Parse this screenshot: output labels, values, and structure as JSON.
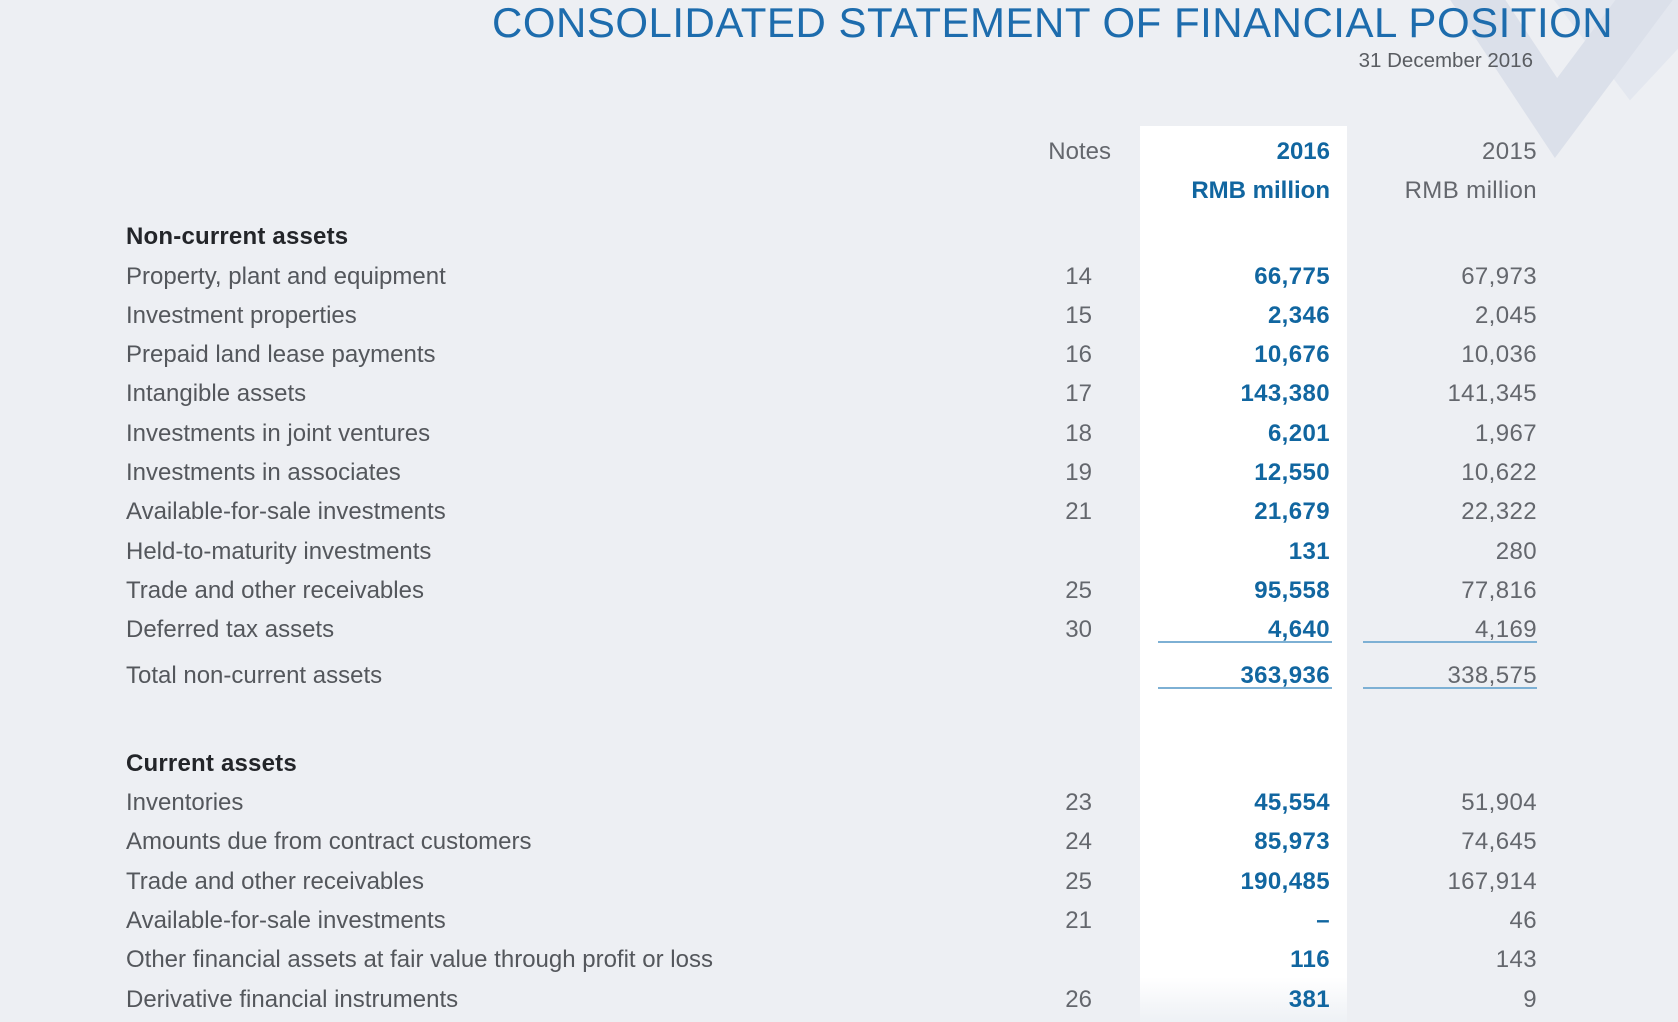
{
  "report": {
    "title": "CONSOLIDATED STATEMENT OF FINANCIAL POSITION",
    "date": "31 December 2016"
  },
  "table": {
    "headers": {
      "notes": "Notes",
      "year_current": "2016",
      "year_prior": "2015",
      "unit_current": "RMB million",
      "unit_prior": "RMB million"
    },
    "sections": [
      {
        "heading": "Non-current assets",
        "rows": [
          {
            "label": "Property, plant and equipment",
            "note": "14",
            "v2016": "66,775",
            "v2015": "67,973"
          },
          {
            "label": "Investment properties",
            "note": "15",
            "v2016": "2,346",
            "v2015": "2,045"
          },
          {
            "label": "Prepaid land lease payments",
            "note": "16",
            "v2016": "10,676",
            "v2015": "10,036"
          },
          {
            "label": "Intangible assets",
            "note": "17",
            "v2016": "143,380",
            "v2015": "141,345"
          },
          {
            "label": "Investments in joint ventures",
            "note": "18",
            "v2016": "6,201",
            "v2015": "1,967"
          },
          {
            "label": "Investments in associates",
            "note": "19",
            "v2016": "12,550",
            "v2015": "10,622"
          },
          {
            "label": "Available-for-sale investments",
            "note": "21",
            "v2016": "21,679",
            "v2015": "22,322"
          },
          {
            "label": "Held-to-maturity investments",
            "note": "",
            "v2016": "131",
            "v2015": "280"
          },
          {
            "label": "Trade and other receivables",
            "note": "25",
            "v2016": "95,558",
            "v2015": "77,816"
          },
          {
            "label": "Deferred tax assets",
            "note": "30",
            "v2016": "4,640",
            "v2015": "4,169",
            "rule_below": true
          }
        ],
        "total": {
          "label": "Total non-current assets",
          "v2016": "363,936",
          "v2015": "338,575",
          "rule_below": true
        }
      },
      {
        "heading": "Current assets",
        "rows": [
          {
            "label": "Inventories",
            "note": "23",
            "v2016": "45,554",
            "v2015": "51,904"
          },
          {
            "label": "Amounts due from contract customers",
            "note": "24",
            "v2016": "85,973",
            "v2015": "74,645"
          },
          {
            "label": "Trade and other receivables",
            "note": "25",
            "v2016": "190,485",
            "v2015": "167,914"
          },
          {
            "label": "Available-for-sale investments",
            "note": "21",
            "v2016": "–",
            "v2015": "46"
          },
          {
            "label": "Other financial assets at fair value through profit or loss",
            "note": "",
            "v2016": "116",
            "v2015": "143"
          },
          {
            "label": "Derivative financial instruments",
            "note": "26",
            "v2016": "381",
            "v2015": "9"
          }
        ]
      }
    ]
  },
  "colors": {
    "page_background": "#edeff3",
    "highlight_column": "#ffffff",
    "title_blue": "#1d6cad",
    "value_blue": "#1166a0",
    "rule_blue": "#7db0d4",
    "text_gray": "#64676d",
    "label_gray": "#54575c",
    "heading_dark": "#232529",
    "watermark_dark": "#dbe0ea",
    "watermark_light": "#e3e7ef"
  }
}
